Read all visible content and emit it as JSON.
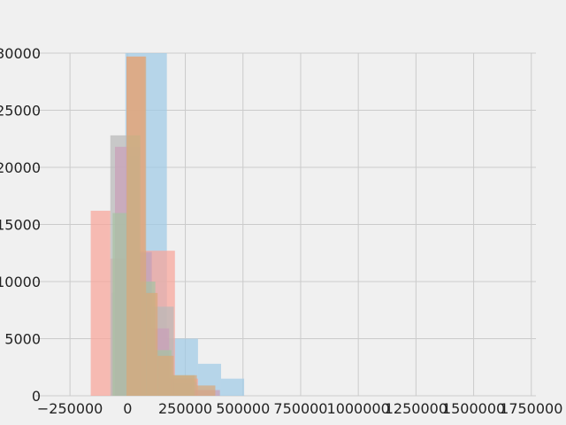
{
  "chart_data": {
    "type": "bar",
    "title": "",
    "xlabel": "",
    "ylabel": "",
    "grid": true,
    "xlim": [
      -400000,
      1770000
    ],
    "ylim": [
      0,
      30000
    ],
    "x_ticks": [
      -250000,
      0,
      250000,
      500000,
      750000,
      1000000,
      1250000,
      1500000,
      1750000
    ],
    "x_tick_labels": [
      "−250000",
      "0",
      "250000",
      "500000",
      "750000",
      "1000000",
      "1250000",
      "1500000",
      "1750000"
    ],
    "y_ticks": [
      0,
      5000,
      10000,
      15000,
      20000,
      25000,
      30000
    ],
    "y_tick_labels": [
      "0",
      "5000",
      "10000",
      "15000",
      "20000",
      "25000",
      "30000"
    ],
    "colors": [
      "#f8a59a",
      "#9fcbe6",
      "#b8b8b8",
      "#c9a0b9",
      "#a6c2a2",
      "#d8a778"
    ],
    "series": [
      {
        "color": "#9fcbe6",
        "bins": [
          [
            -70000,
            -10000,
            9000
          ],
          [
            -10000,
            170000,
            30000
          ],
          [
            170000,
            305000,
            5000
          ],
          [
            305000,
            405000,
            2800
          ],
          [
            405000,
            505000,
            1500
          ]
        ]
      },
      {
        "color": "#f8a59a",
        "bins": [
          [
            -160000,
            -75000,
            16200
          ],
          [
            -75000,
            -5000,
            12000
          ],
          [
            -5000,
            75000,
            29700
          ],
          [
            75000,
            205000,
            12700
          ],
          [
            205000,
            305000,
            1500
          ]
        ]
      },
      {
        "color": "#b8b8b8",
        "bins": [
          [
            -75000,
            0,
            22800
          ],
          [
            0,
            50000,
            21000
          ],
          [
            50000,
            100000,
            12500
          ],
          [
            100000,
            200000,
            7800
          ],
          [
            200000,
            300000,
            1200
          ]
        ]
      },
      {
        "color": "#c9a0b9",
        "bins": [
          [
            -55000,
            55000,
            21800
          ],
          [
            55000,
            105000,
            12600
          ],
          [
            105000,
            180000,
            5900
          ],
          [
            180000,
            280000,
            1500
          ],
          [
            280000,
            400000,
            500
          ]
        ]
      },
      {
        "color": "#a6c2a2",
        "bins": [
          [
            -65000,
            0,
            16000
          ],
          [
            0,
            55000,
            22800
          ],
          [
            55000,
            120000,
            10000
          ],
          [
            120000,
            190000,
            4000
          ],
          [
            190000,
            290000,
            1800
          ]
        ]
      },
      {
        "color": "#d8a778",
        "bins": [
          [
            -5000,
            80000,
            29700
          ],
          [
            80000,
            130000,
            9000
          ],
          [
            130000,
            200000,
            3500
          ],
          [
            200000,
            300000,
            1800
          ],
          [
            300000,
            380000,
            900
          ]
        ]
      }
    ]
  }
}
